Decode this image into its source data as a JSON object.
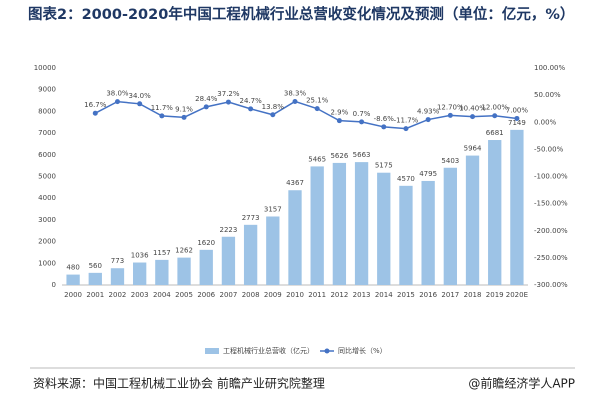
{
  "chart_data": {
    "type": "bar_line",
    "title": "图表2：2000-2020年中国工程机械行业总营收变化情况及预测（单位：亿元，%）",
    "categories": [
      "2000",
      "2001",
      "2002",
      "2003",
      "2004",
      "2005",
      "2006",
      "2007",
      "2008",
      "2009",
      "2010",
      "2011",
      "2012",
      "2013",
      "2014",
      "2015",
      "2016",
      "2017",
      "2018",
      "2019",
      "2020E"
    ],
    "series": [
      {
        "name": "工程机械行业总营收（亿元）",
        "type": "bar",
        "color": "#9dc3e6",
        "values": [
          480,
          560,
          773,
          1036,
          1157,
          1262,
          1620,
          2223,
          2773,
          3157,
          4367,
          5465,
          5626,
          5663,
          5175,
          4570,
          4795,
          5403,
          5964,
          6681,
          7149
        ]
      },
      {
        "name": "同比增长（%）",
        "type": "line",
        "axis": "y2",
        "color": "#4472c4",
        "values": [
          null,
          16.7,
          38.0,
          34.0,
          11.7,
          9.1,
          28.4,
          37.2,
          24.7,
          13.8,
          38.3,
          25.1,
          2.9,
          0.7,
          -8.6,
          -11.7,
          4.93,
          12.7,
          10.4,
          12.0,
          7.0
        ],
        "value_labels": [
          null,
          "16.7%",
          "38.0%",
          "34.0%",
          "11.7%",
          "9.1%",
          "28.4%",
          "37.2%",
          "24.7%",
          "13.8%",
          "38.3%",
          "25.1%",
          "2.9%",
          "0.7%",
          "-8.6%",
          "-11.7%",
          "4.93%",
          "12.70%",
          "10.40%",
          "12.00%",
          "7.00%"
        ]
      }
    ],
    "ylim": [
      0,
      10000
    ],
    "yticks": [
      0,
      1000,
      2000,
      3000,
      4000,
      5000,
      6000,
      7000,
      8000,
      9000,
      10000
    ],
    "y2lim": [
      -300,
      100
    ],
    "y2ticks": [
      {
        "value": 100,
        "label": "100.00%"
      },
      {
        "value": 50,
        "label": "50.00%"
      },
      {
        "value": 0,
        "label": "0.00%"
      },
      {
        "value": -50,
        "label": "-50.00%"
      },
      {
        "value": -100,
        "label": "-100.00%"
      },
      {
        "value": -150,
        "label": "-150.00%"
      },
      {
        "value": -200,
        "label": "-200.00%"
      },
      {
        "value": -250,
        "label": "-250.00%"
      },
      {
        "value": -300,
        "label": "-300.00%"
      }
    ],
    "source": "资料来源：中国工程机械工业协会 前瞻产业研究院整理",
    "brand": "@前瞻经济学人APP"
  }
}
